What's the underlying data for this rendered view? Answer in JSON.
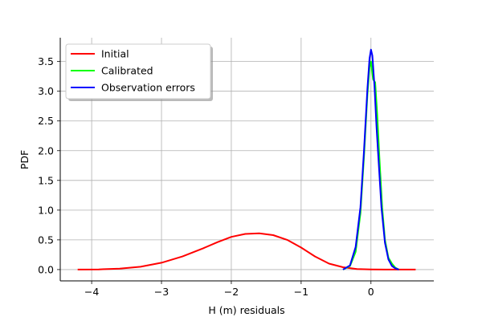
{
  "chart_data": {
    "type": "line",
    "title": "",
    "xlabel": "H (m) residuals",
    "ylabel": "PDF",
    "xlim": [
      -4.45,
      0.9
    ],
    "ylim": [
      -0.19,
      3.9
    ],
    "x_ticks": [
      {
        "value": -4,
        "label": "−4"
      },
      {
        "value": -3,
        "label": "−3"
      },
      {
        "value": -2,
        "label": "−2"
      },
      {
        "value": -1,
        "label": "−1"
      },
      {
        "value": 0,
        "label": "0"
      }
    ],
    "y_ticks": [
      {
        "value": 0.0,
        "label": "0.0"
      },
      {
        "value": 0.5,
        "label": "0.5"
      },
      {
        "value": 1.0,
        "label": "1.0"
      },
      {
        "value": 1.5,
        "label": "1.5"
      },
      {
        "value": 2.0,
        "label": "2.0"
      },
      {
        "value": 2.5,
        "label": "2.5"
      },
      {
        "value": 3.0,
        "label": "3.0"
      },
      {
        "value": 3.5,
        "label": "3.5"
      }
    ],
    "grid": true,
    "legend_position": "top-left",
    "series": [
      {
        "name": "Initial",
        "color": "#ff0000",
        "x": [
          -4.2,
          -3.9,
          -3.6,
          -3.3,
          -3.0,
          -2.7,
          -2.4,
          -2.2,
          -2.0,
          -1.8,
          -1.6,
          -1.4,
          -1.2,
          -1.0,
          -0.8,
          -0.6,
          -0.4,
          -0.2,
          0.0,
          0.2,
          0.4,
          0.64
        ],
        "y": [
          0.0,
          0.003,
          0.015,
          0.048,
          0.115,
          0.22,
          0.36,
          0.46,
          0.55,
          0.6,
          0.61,
          0.58,
          0.5,
          0.37,
          0.22,
          0.1,
          0.04,
          0.01,
          0.003,
          0.001,
          0.0,
          0.0
        ]
      },
      {
        "name": "Calibrated",
        "color": "#00ff00",
        "x": [
          -0.4,
          -0.3,
          -0.22,
          -0.15,
          -0.1,
          -0.05,
          -0.02,
          0.0,
          0.03,
          0.06,
          0.09,
          0.12,
          0.16,
          0.2,
          0.25,
          0.3,
          0.35,
          0.4
        ],
        "y": [
          0.0,
          0.06,
          0.3,
          0.95,
          1.9,
          2.95,
          3.4,
          3.5,
          3.2,
          3.15,
          2.6,
          1.9,
          1.05,
          0.5,
          0.2,
          0.1,
          0.03,
          0.0
        ]
      },
      {
        "name": "Observation errors",
        "color": "#0000ff",
        "x": [
          -0.4,
          -0.3,
          -0.22,
          -0.15,
          -0.1,
          -0.05,
          -0.02,
          0.0,
          0.02,
          0.05,
          0.08,
          0.1,
          0.15,
          0.2,
          0.25,
          0.3,
          0.35,
          0.4
        ],
        "y": [
          0.0,
          0.07,
          0.38,
          1.05,
          2.0,
          3.05,
          3.55,
          3.7,
          3.6,
          3.1,
          2.4,
          2.0,
          1.05,
          0.45,
          0.17,
          0.06,
          0.02,
          0.0
        ]
      }
    ]
  }
}
